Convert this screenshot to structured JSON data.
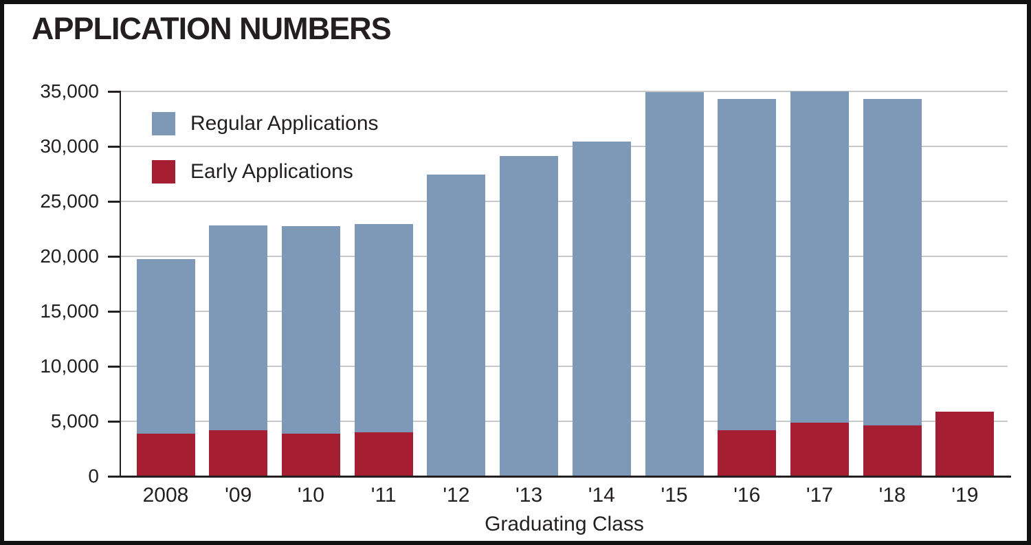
{
  "chart_data": {
    "type": "bar",
    "title": "APPLICATION NUMBERS",
    "xlabel": "Graduating Class",
    "ylabel": "",
    "categories": [
      "2008",
      "'09",
      "'10",
      "'11",
      "'12",
      "'13",
      "'14",
      "'15",
      "'16",
      "'17",
      "'18",
      "'19"
    ],
    "series": [
      {
        "name": "Regular Applications",
        "color": "#7e99b8",
        "values": [
          19750,
          22800,
          22750,
          22950,
          27450,
          29100,
          30450,
          34950,
          34300,
          35000,
          34300,
          null
        ]
      },
      {
        "name": "Early Applications",
        "color": "#a61e32",
        "values": [
          3900,
          4200,
          3850,
          4000,
          null,
          null,
          null,
          null,
          4200,
          4850,
          4650,
          5900
        ]
      }
    ],
    "ylim": [
      0,
      35000
    ],
    "ytick_values": [
      0,
      5000,
      10000,
      15000,
      20000,
      25000,
      30000,
      35000
    ],
    "ytick_labels": [
      "0",
      "5,000",
      "10,000",
      "15,000",
      "20,000",
      "25,000",
      "30,000",
      "35,000"
    ],
    "grid": true,
    "legend_position": "top-left",
    "bar_style": "overlaid: early-application bars drawn from baseline in front of total/regular bars"
  },
  "colors": {
    "background": "#ffffff",
    "border": "#111111",
    "axis": "#231f20",
    "text": "#231f20",
    "gridline": "#c9c9c9",
    "regular_bar": "#7e99b8",
    "early_bar": "#a61e32"
  }
}
